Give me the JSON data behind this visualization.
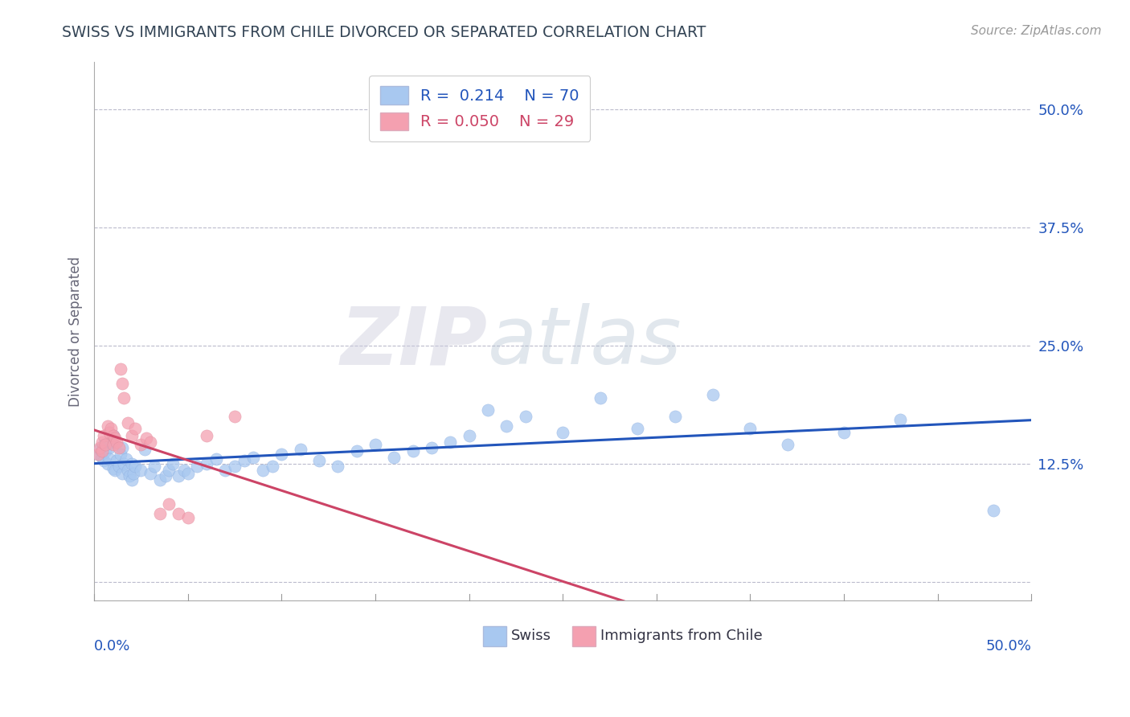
{
  "title": "SWISS VS IMMIGRANTS FROM CHILE DIVORCED OR SEPARATED CORRELATION CHART",
  "source": "Source: ZipAtlas.com",
  "ylabel": "Divorced or Separated",
  "yticks": [
    0.0,
    0.125,
    0.25,
    0.375,
    0.5
  ],
  "ytick_labels": [
    "",
    "12.5%",
    "25.0%",
    "37.5%",
    "50.0%"
  ],
  "xlim": [
    0.0,
    0.5
  ],
  "ylim": [
    -0.02,
    0.55
  ],
  "legend_r1": "R =  0.214",
  "legend_n1": "N = 70",
  "legend_r2": "R = 0.050",
  "legend_n2": "N = 29",
  "blue_color": "#A8C8F0",
  "pink_color": "#F4A0B0",
  "blue_line_color": "#2255BB",
  "pink_line_color": "#CC4466",
  "watermark_zip": "ZIP",
  "watermark_atlas": "atlas",
  "swiss_x": [
    0.002,
    0.003,
    0.004,
    0.005,
    0.005,
    0.006,
    0.007,
    0.008,
    0.008,
    0.009,
    0.01,
    0.01,
    0.011,
    0.012,
    0.013,
    0.014,
    0.015,
    0.015,
    0.016,
    0.017,
    0.018,
    0.019,
    0.02,
    0.02,
    0.021,
    0.022,
    0.025,
    0.027,
    0.03,
    0.032,
    0.035,
    0.038,
    0.04,
    0.042,
    0.045,
    0.048,
    0.05,
    0.055,
    0.06,
    0.065,
    0.07,
    0.075,
    0.08,
    0.085,
    0.09,
    0.095,
    0.1,
    0.11,
    0.12,
    0.13,
    0.14,
    0.15,
    0.16,
    0.17,
    0.18,
    0.19,
    0.2,
    0.21,
    0.22,
    0.23,
    0.25,
    0.27,
    0.29,
    0.31,
    0.33,
    0.35,
    0.37,
    0.4,
    0.43,
    0.48
  ],
  "swiss_y": [
    0.135,
    0.14,
    0.132,
    0.128,
    0.145,
    0.138,
    0.125,
    0.142,
    0.13,
    0.148,
    0.12,
    0.155,
    0.118,
    0.128,
    0.122,
    0.135,
    0.115,
    0.142,
    0.125,
    0.13,
    0.118,
    0.112,
    0.108,
    0.125,
    0.115,
    0.122,
    0.118,
    0.14,
    0.115,
    0.122,
    0.108,
    0.112,
    0.118,
    0.125,
    0.112,
    0.118,
    0.115,
    0.122,
    0.125,
    0.13,
    0.118,
    0.122,
    0.128,
    0.132,
    0.118,
    0.122,
    0.135,
    0.14,
    0.128,
    0.122,
    0.138,
    0.145,
    0.132,
    0.138,
    0.142,
    0.148,
    0.155,
    0.182,
    0.165,
    0.175,
    0.158,
    0.195,
    0.162,
    0.175,
    0.198,
    0.162,
    0.145,
    0.158,
    0.172,
    0.075
  ],
  "chile_x": [
    0.002,
    0.003,
    0.004,
    0.004,
    0.005,
    0.006,
    0.007,
    0.008,
    0.009,
    0.01,
    0.01,
    0.011,
    0.012,
    0.013,
    0.014,
    0.015,
    0.016,
    0.018,
    0.02,
    0.022,
    0.025,
    0.028,
    0.03,
    0.035,
    0.04,
    0.045,
    0.05,
    0.06,
    0.075
  ],
  "chile_y": [
    0.135,
    0.142,
    0.138,
    0.148,
    0.155,
    0.145,
    0.165,
    0.158,
    0.162,
    0.145,
    0.155,
    0.152,
    0.148,
    0.142,
    0.225,
    0.21,
    0.195,
    0.168,
    0.155,
    0.162,
    0.145,
    0.152,
    0.148,
    0.072,
    0.082,
    0.072,
    0.068,
    0.155,
    0.175
  ]
}
